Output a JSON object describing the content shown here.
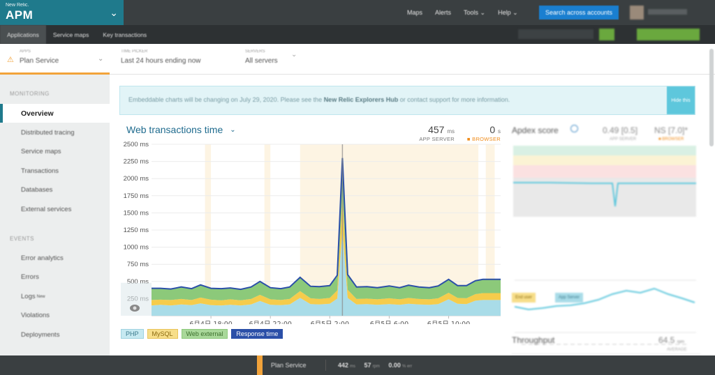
{
  "header": {
    "brand_small": "New Relic.",
    "brand_big": "APM",
    "nav": [
      "Maps",
      "Alerts",
      "Tools ⌄",
      "Help ⌄"
    ],
    "search_label": "Search across accounts"
  },
  "subnav": [
    "Applications",
    "Service maps",
    "Key transactions"
  ],
  "context": {
    "app_label": "APPS",
    "app_value": "Plan Service",
    "time_label": "TIME PICKER",
    "time_value": "Last 24 hours ending now",
    "servers_label": "SERVERS",
    "servers_value": "All servers"
  },
  "sidebar": {
    "monitoring_title": "MONITORING",
    "monitoring_items": [
      "Overview",
      "Distributed tracing",
      "Service maps",
      "Transactions",
      "Databases",
      "External services"
    ],
    "events_title": "EVENTS",
    "events_items": [
      "Error analytics",
      "Errors",
      "Logs",
      "Violations",
      "Deployments"
    ],
    "logs_badge": "New"
  },
  "notice": {
    "text_before": "Embeddable charts will be changing on July 29, 2020. Please see the ",
    "link": "New Relic Explorers Hub",
    "text_after": " or contact support for more information.",
    "button": "Hide this"
  },
  "chart_header": {
    "title": "Web transactions time",
    "app_server_value": "457",
    "app_server_unit": "ms",
    "app_server_caption": "APP SERVER",
    "browser_value": "0",
    "browser_unit": "s",
    "browser_caption": "■ BROWSER"
  },
  "chart_data": {
    "type": "area",
    "title": "Web transactions time",
    "yunit": "ms",
    "ylim": [
      0,
      2500
    ],
    "y_ticks": [
      250,
      500,
      750,
      1000,
      1250,
      1500,
      1750,
      2000,
      2250,
      2500
    ],
    "y_tick_labels": [
      "250 ms",
      "500 ms",
      "750 ms",
      "1000 ms",
      "1250 ms",
      "1500 ms",
      "1750 ms",
      "2000 ms",
      "2250 ms",
      "2500 ms"
    ],
    "x_range_hours": [
      14.0,
      13.5
    ],
    "x_ticks": [
      {
        "t": 18,
        "label": "6月4日 18:00"
      },
      {
        "t": 22,
        "label": "6月4日 22:00"
      },
      {
        "t": 26,
        "label": "6月5日 2:00"
      },
      {
        "t": 30,
        "label": "6月5日 6:00"
      },
      {
        "t": 34,
        "label": "6月5日 10:00"
      }
    ],
    "series": [
      {
        "name": "PHP",
        "color": "#a9dce8"
      },
      {
        "name": "MySQL",
        "color": "#f5cc4c"
      },
      {
        "name": "Web external",
        "color": "#8cc97a"
      },
      {
        "name": "Response time",
        "color": "#2b4fa8"
      }
    ],
    "points": [
      {
        "t": 14.0,
        "php": 150,
        "mysql": 80,
        "ext": 170,
        "resp": 400
      },
      {
        "t": 14.6,
        "php": 160,
        "mysql": 75,
        "ext": 165,
        "resp": 400
      },
      {
        "t": 15.3,
        "php": 150,
        "mysql": 80,
        "ext": 160,
        "resp": 390
      },
      {
        "t": 16.0,
        "php": 165,
        "mysql": 80,
        "ext": 175,
        "resp": 420
      },
      {
        "t": 16.7,
        "php": 155,
        "mysql": 75,
        "ext": 165,
        "resp": 395
      },
      {
        "t": 17.3,
        "php": 180,
        "mysql": 85,
        "ext": 185,
        "resp": 450
      },
      {
        "t": 18.0,
        "php": 155,
        "mysql": 80,
        "ext": 165,
        "resp": 400
      },
      {
        "t": 18.7,
        "php": 150,
        "mysql": 75,
        "ext": 170,
        "resp": 395
      },
      {
        "t": 19.3,
        "php": 160,
        "mysql": 80,
        "ext": 165,
        "resp": 405
      },
      {
        "t": 20.0,
        "php": 150,
        "mysql": 75,
        "ext": 160,
        "resp": 385
      },
      {
        "t": 20.7,
        "php": 165,
        "mysql": 80,
        "ext": 175,
        "resp": 420
      },
      {
        "t": 21.3,
        "php": 215,
        "mysql": 90,
        "ext": 195,
        "resp": 500
      },
      {
        "t": 22.0,
        "php": 160,
        "mysql": 80,
        "ext": 170,
        "resp": 410
      },
      {
        "t": 22.7,
        "php": 155,
        "mysql": 75,
        "ext": 165,
        "resp": 395
      },
      {
        "t": 23.3,
        "php": 165,
        "mysql": 80,
        "ext": 175,
        "resp": 420
      },
      {
        "t": 24.0,
        "php": 260,
        "mysql": 100,
        "ext": 200,
        "resp": 560
      },
      {
        "t": 24.7,
        "php": 170,
        "mysql": 85,
        "ext": 175,
        "resp": 430
      },
      {
        "t": 25.3,
        "php": 165,
        "mysql": 80,
        "ext": 180,
        "resp": 425
      },
      {
        "t": 26.0,
        "php": 175,
        "mysql": 85,
        "ext": 180,
        "resp": 440
      },
      {
        "t": 26.5,
        "php": 250,
        "mysql": 120,
        "ext": 200,
        "resp": 590
      },
      {
        "t": 26.85,
        "php": 1250,
        "mysql": 500,
        "ext": 550,
        "resp": 2300
      },
      {
        "t": 27.2,
        "php": 260,
        "mysql": 120,
        "ext": 200,
        "resp": 600
      },
      {
        "t": 27.8,
        "php": 165,
        "mysql": 80,
        "ext": 175,
        "resp": 420
      },
      {
        "t": 28.5,
        "php": 170,
        "mysql": 80,
        "ext": 175,
        "resp": 425
      },
      {
        "t": 29.2,
        "php": 160,
        "mysql": 80,
        "ext": 170,
        "resp": 410
      },
      {
        "t": 30.0,
        "php": 170,
        "mysql": 85,
        "ext": 180,
        "resp": 435
      },
      {
        "t": 30.7,
        "php": 160,
        "mysql": 80,
        "ext": 170,
        "resp": 410
      },
      {
        "t": 31.3,
        "php": 175,
        "mysql": 85,
        "ext": 185,
        "resp": 445
      },
      {
        "t": 32.0,
        "php": 165,
        "mysql": 80,
        "ext": 175,
        "resp": 420
      },
      {
        "t": 32.7,
        "php": 160,
        "mysql": 80,
        "ext": 170,
        "resp": 410
      },
      {
        "t": 33.3,
        "php": 170,
        "mysql": 85,
        "ext": 180,
        "resp": 435
      },
      {
        "t": 34.0,
        "php": 240,
        "mysql": 95,
        "ext": 195,
        "resp": 530
      },
      {
        "t": 34.6,
        "php": 175,
        "mysql": 85,
        "ext": 180,
        "resp": 440
      },
      {
        "t": 35.2,
        "php": 170,
        "mysql": 85,
        "ext": 185,
        "resp": 440
      },
      {
        "t": 35.8,
        "php": 220,
        "mysql": 95,
        "ext": 195,
        "resp": 510
      },
      {
        "t": 36.3,
        "php": 230,
        "mysql": 100,
        "ext": 200,
        "resp": 530
      },
      {
        "t": 37.5,
        "php": 230,
        "mysql": 100,
        "ext": 200,
        "resp": 530
      }
    ]
  },
  "legend": [
    "PHP",
    "MySQL",
    "Web external",
    "Response time"
  ],
  "right_panel": {
    "apdex_title": "Apdex score",
    "apdex_value1": "0.49 [0.5]",
    "apdex_value2": "NS [7.0]*",
    "apdex_cap1": "APP SERVER",
    "apdex_cap2": "■ BROWSER",
    "end_user_chip": "End user",
    "app_server_chip": "App Server",
    "throughput_title": "Throughput",
    "throughput_value": "64.5",
    "throughput_unit": "rpm",
    "throughput_cap": "AVERAGE"
  },
  "footer": {
    "service": "Plan Service",
    "metric1": "442",
    "metric1_unit": "ms",
    "metric2": "57",
    "metric2_unit": "rpm",
    "metric3": "0.00",
    "metric3_unit": "% err"
  }
}
